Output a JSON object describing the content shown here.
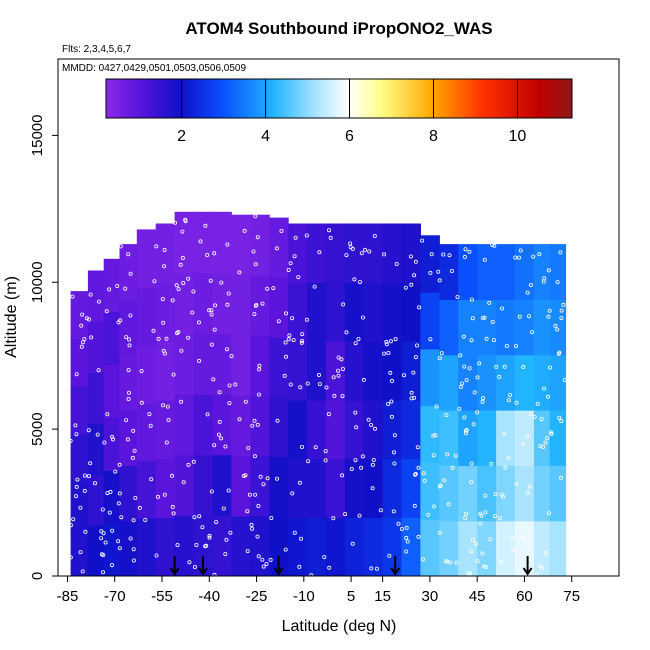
{
  "chart_data": {
    "type": "heatmap",
    "title": "ATOM4 Southbound iPropONO2_WAS",
    "subtitle_flights": "Flts: 2,3,4,5,6,7",
    "subtitle_dates": "MMDD: 0427,0429,0501,0503,0506,0509",
    "xlabel": "Latitude (deg N)",
    "ylabel": "Altitude (m)",
    "xlim": [
      -88,
      90
    ],
    "ylim": [
      0,
      17600
    ],
    "xticks": [
      -85,
      -70,
      -55,
      -40,
      -25,
      -10,
      5,
      15,
      30,
      45,
      60,
      75
    ],
    "xtick_labels": [
      "-85",
      "-70",
      "-55",
      "-40",
      "-25",
      "-10",
      "5",
      "15",
      "30",
      "45",
      "60",
      "75"
    ],
    "yticks": [
      0,
      5000,
      10000,
      15000
    ],
    "ytick_labels": [
      "0",
      "5000",
      "10000",
      "15000"
    ],
    "colorbar": {
      "range": [
        0.2,
        11.3
      ],
      "ticks": [
        2,
        4,
        6,
        8,
        10
      ],
      "tick_labels": [
        "2",
        "4",
        "6",
        "8",
        "10"
      ],
      "colors": [
        "#7a1ee0",
        "#3a10d8",
        "#0000c8",
        "#0a50ff",
        "#20c0ff",
        "#ffffff",
        "#ffff90",
        "#ffb000",
        "#ff3a00",
        "#c00000",
        "#9a1010"
      ]
    },
    "color_stops": [
      [
        0.2,
        "#8a2be8"
      ],
      [
        1.0,
        "#5a14dc"
      ],
      [
        2.0,
        "#1010c8"
      ],
      [
        3.0,
        "#0a50ff"
      ],
      [
        4.2,
        "#22b4ff"
      ],
      [
        5.2,
        "#a8e4ff"
      ],
      [
        6.0,
        "#ffffff"
      ],
      [
        6.8,
        "#ffff88"
      ],
      [
        8.0,
        "#ffa800"
      ],
      [
        9.2,
        "#ff3000"
      ],
      [
        10.5,
        "#c00000"
      ],
      [
        11.3,
        "#901818"
      ]
    ],
    "columns": [
      {
        "lat": -81,
        "top": 9700,
        "values": [
          1.8,
          1.8,
          1.6,
          1.3,
          1.0,
          0.8
        ]
      },
      {
        "lat": -76,
        "top": 10400,
        "values": [
          2.0,
          1.6,
          1.8,
          1.4,
          1.1,
          0.9
        ]
      },
      {
        "lat": -71,
        "top": 10800,
        "values": [
          2.1,
          1.9,
          1.2,
          1.0,
          1.2,
          0.8
        ]
      },
      {
        "lat": -66,
        "top": 11300,
        "values": [
          1.9,
          1.6,
          1.0,
          0.8,
          0.9,
          0.7
        ]
      },
      {
        "lat": -60,
        "top": 11800,
        "values": [
          1.8,
          1.3,
          0.9,
          0.7,
          0.8,
          0.6
        ]
      },
      {
        "lat": -54,
        "top": 12000,
        "values": [
          1.6,
          1.0,
          0.8,
          0.6,
          0.7,
          0.6
        ]
      },
      {
        "lat": -48,
        "top": 12400,
        "values": [
          1.7,
          1.1,
          0.9,
          0.7,
          0.6,
          0.5
        ]
      },
      {
        "lat": -42,
        "top": 12400,
        "values": [
          1.6,
          1.5,
          1.2,
          0.8,
          0.7,
          0.5
        ]
      },
      {
        "lat": -36,
        "top": 12400,
        "values": [
          1.5,
          1.8,
          1.0,
          0.8,
          0.6,
          0.5
        ]
      },
      {
        "lat": -30,
        "top": 12300,
        "values": [
          1.7,
          1.0,
          0.8,
          0.6,
          0.6,
          0.5
        ]
      },
      {
        "lat": -24,
        "top": 12300,
        "values": [
          1.8,
          1.4,
          1.1,
          1.0,
          0.8,
          0.6
        ]
      },
      {
        "lat": -18,
        "top": 12200,
        "values": [
          2.0,
          1.9,
          1.6,
          1.4,
          1.0,
          0.8
        ]
      },
      {
        "lat": -12,
        "top": 12000,
        "values": [
          2.1,
          1.8,
          1.9,
          1.5,
          1.4,
          1.2
        ]
      },
      {
        "lat": -6,
        "top": 12000,
        "values": [
          2.2,
          1.8,
          1.5,
          1.8,
          1.8,
          1.4
        ]
      },
      {
        "lat": 0,
        "top": 12000,
        "values": [
          2.1,
          1.4,
          1.1,
          1.2,
          1.6,
          1.5
        ]
      },
      {
        "lat": 6,
        "top": 12000,
        "values": [
          2.3,
          1.9,
          1.5,
          1.7,
          1.9,
          1.6
        ]
      },
      {
        "lat": 12,
        "top": 12000,
        "values": [
          2.4,
          2.0,
          1.8,
          1.9,
          1.8,
          1.6
        ]
      },
      {
        "lat": 18,
        "top": 12000,
        "values": [
          2.6,
          2.4,
          2.2,
          2.0,
          1.9,
          1.7
        ]
      },
      {
        "lat": 24,
        "top": 12000,
        "values": [
          3.2,
          2.8,
          2.4,
          2.2,
          2.0,
          1.8
        ]
      },
      {
        "lat": 30,
        "top": 11600,
        "values": [
          4.6,
          4.4,
          4.3,
          3.8,
          2.8,
          2.2
        ]
      },
      {
        "lat": 36,
        "top": 11300,
        "values": [
          4.8,
          4.6,
          4.4,
          4.0,
          3.2,
          2.4
        ]
      },
      {
        "lat": 42,
        "top": 11300,
        "values": [
          5.2,
          4.8,
          4.0,
          3.6,
          3.6,
          3.0
        ]
      },
      {
        "lat": 48,
        "top": 11300,
        "values": [
          4.9,
          4.5,
          4.2,
          3.8,
          3.6,
          3.2
        ]
      },
      {
        "lat": 54,
        "top": 11300,
        "values": [
          5.6,
          4.9,
          5.2,
          4.0,
          3.5,
          3.2
        ]
      },
      {
        "lat": 60,
        "top": 11300,
        "values": [
          5.8,
          5.2,
          5.4,
          4.2,
          3.6,
          3.4
        ]
      },
      {
        "lat": 66,
        "top": 11300,
        "values": [
          5.4,
          4.8,
          4.6,
          4.1,
          3.8,
          3.6
        ]
      },
      {
        "lat": 70,
        "top": 11300,
        "values": [
          5.2,
          4.6,
          4.2,
          4.0,
          3.7,
          3.5
        ]
      }
    ],
    "profile_latitudes": [
      -51,
      -42,
      -18,
      19,
      61
    ]
  }
}
